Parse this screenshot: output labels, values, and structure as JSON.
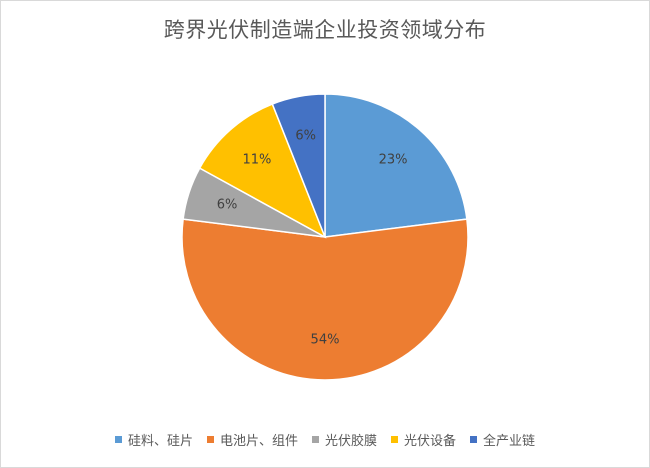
{
  "chart_data": {
    "type": "pie",
    "title": "跨界光伏制造端企业投资领域分布",
    "categories": [
      "硅料、硅片",
      "电池片、组件",
      "光伏胶膜",
      "光伏设备",
      "全产业链"
    ],
    "values": [
      23,
      54,
      6,
      11,
      6
    ],
    "labels": [
      "23%",
      "54%",
      "6%",
      "11%",
      "6%"
    ],
    "colors": [
      "#5B9BD5",
      "#ED7D31",
      "#A5A5A5",
      "#FFC000",
      "#4472C4"
    ],
    "start_angle": "12 o'clock",
    "direction": "clockwise",
    "legend_position": "bottom"
  }
}
